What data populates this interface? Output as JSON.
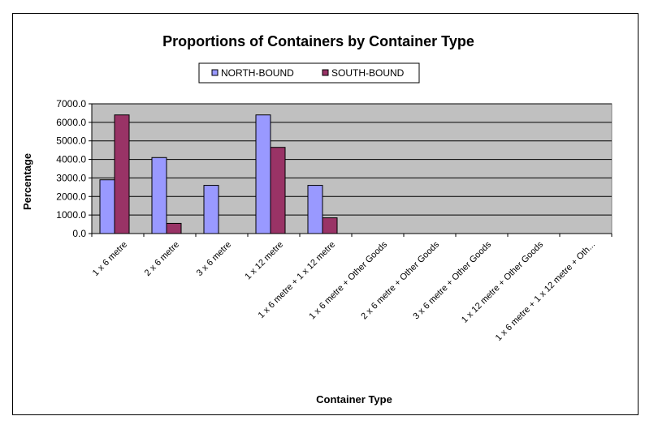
{
  "chart_data": {
    "type": "bar",
    "title": "Proportions of Containers by Container Type",
    "xlabel": "Container Type",
    "ylabel": "Percentage",
    "ylim": [
      0,
      7000
    ],
    "yticks": [
      "0.0",
      "1000.0",
      "2000.0",
      "3000.0",
      "4000.0",
      "5000.0",
      "6000.0",
      "7000.0"
    ],
    "grid": true,
    "legend_position": "top",
    "categories": [
      "1 x 6 metre",
      "2 x 6 metre",
      "3 x 6 metre",
      "1 x 12 metre",
      "1 x 6 metre + 1 x 12 metre",
      "1 x 6 metre + Other Goods",
      "2 x 6 metre + Other Goods",
      "3 x 6 metre + Other Goods",
      "1 x 12 metre + Other Goods",
      "1 x 6 metre + 1 x 12 metre + Oth..."
    ],
    "series": [
      {
        "name": "NORTH-BOUND",
        "color": "#9999ff",
        "values": [
          2900,
          4100,
          2600,
          6400,
          2600,
          0,
          0,
          0,
          0,
          0
        ]
      },
      {
        "name": "SOUTH-BOUND",
        "color": "#993366",
        "values": [
          6400,
          550,
          0,
          4650,
          850,
          0,
          0,
          0,
          0,
          0
        ]
      }
    ],
    "plot_background": "#c0c0c0"
  }
}
